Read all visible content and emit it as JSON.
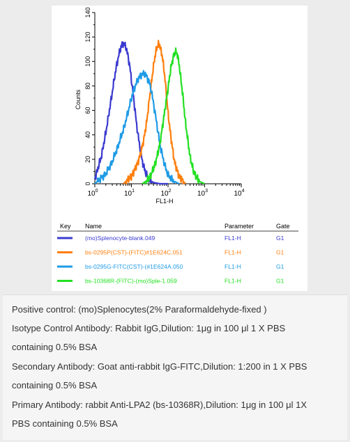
{
  "chart_data": {
    "type": "line",
    "xlabel": "FL1-H",
    "ylabel": "Counts",
    "xscale": "log",
    "xlim": [
      1,
      10000
    ],
    "ylim": [
      0,
      140
    ],
    "x_ticks": [
      {
        "base": "10",
        "exp": "0"
      },
      {
        "base": "10",
        "exp": "1"
      },
      {
        "base": "10",
        "exp": "2"
      },
      {
        "base": "10",
        "exp": "3"
      },
      {
        "base": "10",
        "exp": "4"
      }
    ],
    "y_ticks": [
      "0",
      "20",
      "40",
      "60",
      "80",
      "100",
      "120",
      "140"
    ],
    "y_tick_values": [
      0,
      20,
      40,
      60,
      80,
      100,
      120,
      140
    ],
    "grid": false,
    "series": [
      {
        "name": "(mo)Splenocyte-blank.049",
        "color": "#3a3ad0",
        "x": [
          1,
          1.5,
          2,
          2.5,
          3,
          3.5,
          4,
          4.5,
          5,
          5.5,
          6,
          7,
          8,
          9,
          10,
          12,
          14,
          17,
          20,
          25,
          30,
          40,
          60,
          100
        ],
        "y": [
          4,
          22,
          42,
          60,
          75,
          88,
          98,
          105,
          110,
          114,
          115,
          112,
          105,
          96,
          85,
          65,
          47,
          30,
          18,
          8,
          4,
          1,
          0,
          0
        ]
      },
      {
        "name": "bs-0295P(CST)-(FITC)#1E624C.051",
        "color": "#ff7f0e",
        "x": [
          6,
          10,
          14,
          18,
          22,
          26,
          30,
          35,
          40,
          45,
          50,
          55,
          60,
          70,
          80,
          90,
          100,
          120,
          150,
          200,
          300
        ],
        "y": [
          0,
          6,
          15,
          25,
          37,
          50,
          66,
          82,
          96,
          106,
          112,
          114,
          113,
          104,
          90,
          74,
          58,
          38,
          18,
          6,
          0
        ]
      },
      {
        "name": "bs-0295G-FITC(CST)-(#1E624A.050",
        "color": "#1e9be6",
        "x": [
          1,
          2,
          3,
          4,
          6,
          8,
          10,
          12,
          15,
          18,
          22,
          26,
          30,
          35,
          40,
          50,
          60,
          80,
          100,
          150,
          200
        ],
        "y": [
          0,
          8,
          18,
          28,
          44,
          58,
          70,
          78,
          85,
          89,
          90,
          88,
          84,
          76,
          66,
          48,
          32,
          16,
          7,
          2,
          0
        ]
      },
      {
        "name": "bs-10368R-(FITC)-(mo)Sple-1.059",
        "color": "#22e022",
        "x": [
          20,
          30,
          40,
          50,
          60,
          70,
          80,
          100,
          120,
          140,
          160,
          180,
          200,
          250,
          300,
          400,
          500,
          700,
          1000
        ],
        "y": [
          0,
          4,
          12,
          22,
          33,
          46,
          58,
          78,
          95,
          104,
          108,
          106,
          98,
          74,
          50,
          22,
          10,
          2,
          0
        ]
      }
    ],
    "table": {
      "headers": [
        "Key",
        "Name",
        "Parameter",
        "Gate"
      ],
      "rows": [
        {
          "name": "(mo)Splenocyte-blank.049",
          "parameter": "FL1-H",
          "gate": "G1",
          "color": "#3a3ad0"
        },
        {
          "name": "bs-0295P(CST)-(FITC)#1E624C.051",
          "parameter": "FL1-H",
          "gate": "G1",
          "color": "#ff7f0e"
        },
        {
          "name": "bs-0295G-FITC(CST)-(#1E624A.050",
          "parameter": "FL1-H",
          "gate": "G1",
          "color": "#1e9be6"
        },
        {
          "name": "bs-10368R-(FITC)-(mo)Sple-1.059",
          "parameter": "FL1-H",
          "gate": "G1",
          "color": "#22e022"
        }
      ]
    }
  },
  "caption": {
    "lines": [
      "Positive control: (mo)Splenocytes(2% Paraformaldehyde-fixed )",
      "Isotype Control Antibody: Rabbit IgG,Dilution: 1μg in 100 μl 1 X PBS",
      "containing 0.5% BSA",
      "Secondary Antibody: Goat anti-rabbit IgG-FITC,Dilution: 1:200 in 1 X PBS",
      "containing 0.5% BSA",
      "Primary Antibody: rabbit Anti-LPA2 (bs-10368R),Dilution: 1μg in 100 μl 1X",
      "PBS containing 0.5% BSA"
    ]
  }
}
